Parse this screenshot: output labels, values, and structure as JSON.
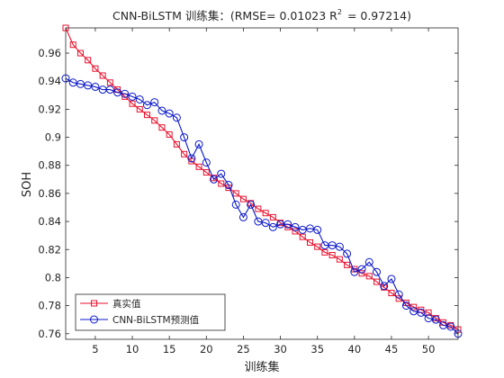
{
  "chart_data": {
    "type": "line",
    "title_prefix": "CNN-BiLSTM 训练集：(RMSE= 0.01023 R",
    "title_sup": "2",
    "title_suffix": "= 0.97214)",
    "xlabel": "训练集",
    "ylabel": "SOH",
    "xlim": [
      1,
      54
    ],
    "ylim": [
      0.756,
      0.978
    ],
    "xticks": [
      5,
      10,
      15,
      20,
      25,
      30,
      35,
      40,
      45,
      50
    ],
    "yticks": [
      0.76,
      0.78,
      0.8,
      0.82,
      0.84,
      0.86,
      0.88,
      0.9,
      0.92,
      0.94,
      0.96
    ],
    "ytick_labels": [
      "0.76",
      "0.78",
      "0.8",
      "0.82",
      "0.84",
      "0.86",
      "0.88",
      "0.9",
      "0.92",
      "0.94",
      "0.96"
    ],
    "grid": false,
    "legend_position": "bottom-left",
    "x": [
      1,
      2,
      3,
      4,
      5,
      6,
      7,
      8,
      9,
      10,
      11,
      12,
      13,
      14,
      15,
      16,
      17,
      18,
      19,
      20,
      21,
      22,
      23,
      24,
      25,
      26,
      27,
      28,
      29,
      30,
      31,
      32,
      33,
      34,
      35,
      36,
      37,
      38,
      39,
      40,
      41,
      42,
      43,
      44,
      45,
      46,
      47,
      48,
      49,
      50,
      51,
      52,
      53,
      54
    ],
    "series": [
      {
        "name": "真实值",
        "color": "#e8112d",
        "marker": "square",
        "values": [
          0.978,
          0.966,
          0.96,
          0.955,
          0.949,
          0.944,
          0.939,
          0.934,
          0.929,
          0.924,
          0.92,
          0.916,
          0.912,
          0.907,
          0.902,
          0.895,
          0.888,
          0.883,
          0.879,
          0.875,
          0.871,
          0.867,
          0.864,
          0.86,
          0.856,
          0.853,
          0.849,
          0.846,
          0.843,
          0.839,
          0.836,
          0.833,
          0.829,
          0.825,
          0.822,
          0.818,
          0.816,
          0.813,
          0.809,
          0.806,
          0.803,
          0.801,
          0.797,
          0.793,
          0.789,
          0.785,
          0.782,
          0.779,
          0.777,
          0.775,
          0.771,
          0.768,
          0.766,
          0.763
        ]
      },
      {
        "name": "CNN-BiLSTM预测值",
        "color": "#0b18c9",
        "marker": "circle",
        "values": [
          0.942,
          0.939,
          0.938,
          0.937,
          0.936,
          0.934,
          0.934,
          0.932,
          0.931,
          0.929,
          0.927,
          0.923,
          0.925,
          0.919,
          0.917,
          0.914,
          0.9,
          0.885,
          0.895,
          0.882,
          0.87,
          0.874,
          0.866,
          0.852,
          0.843,
          0.852,
          0.84,
          0.839,
          0.836,
          0.838,
          0.838,
          0.836,
          0.834,
          0.835,
          0.834,
          0.823,
          0.823,
          0.822,
          0.817,
          0.804,
          0.806,
          0.811,
          0.804,
          0.794,
          0.799,
          0.788,
          0.78,
          0.776,
          0.775,
          0.771,
          0.77,
          0.766,
          0.765,
          0.76
        ]
      }
    ]
  }
}
